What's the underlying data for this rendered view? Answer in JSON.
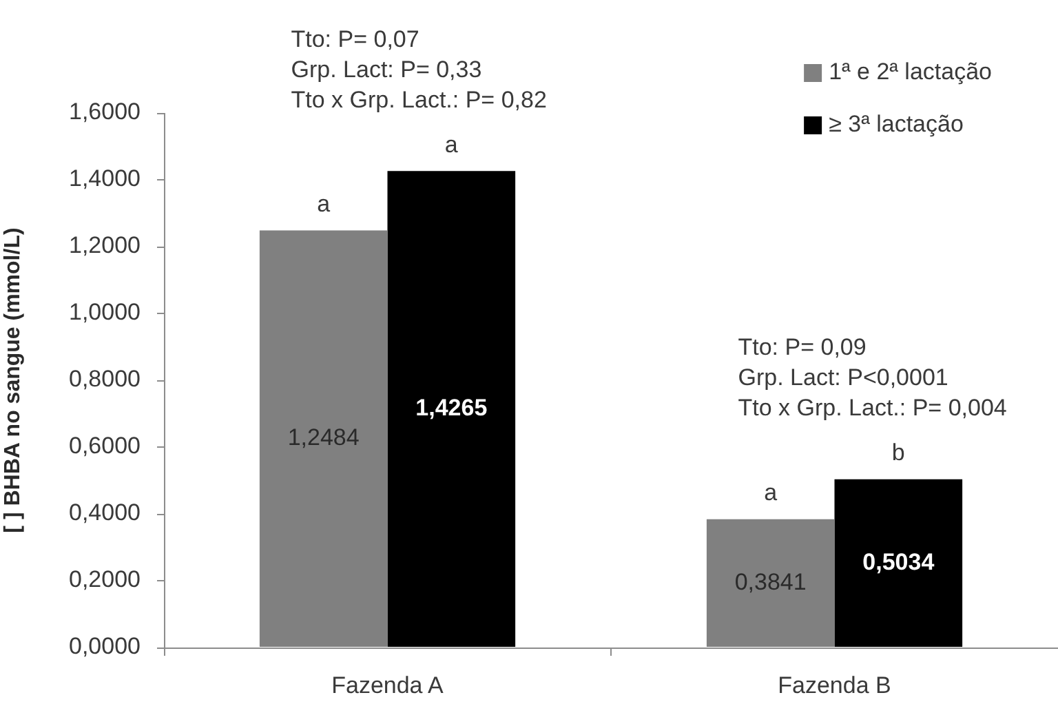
{
  "chart_data": {
    "type": "bar",
    "categories": [
      "Fazenda A",
      "Fazenda B"
    ],
    "series": [
      {
        "name": "1ª e 2ª lactação",
        "color": "#808080",
        "values": [
          1.2484,
          0.3841
        ],
        "value_labels": [
          "1,2484",
          "0,3841"
        ]
      },
      {
        "name": "≥ 3ª lactação",
        "color": "#000000",
        "values": [
          1.4265,
          0.5034
        ],
        "value_labels": [
          "1,4265",
          "0,5034"
        ]
      }
    ],
    "ylabel": "[ ] BHBA no sangue (mmol/L)",
    "ylim": [
      0,
      1.6
    ],
    "yticks": [
      {
        "value": 0,
        "label": "0,0000"
      },
      {
        "value": 0.2,
        "label": "0,2000"
      },
      {
        "value": 0.4,
        "label": "0,4000"
      },
      {
        "value": 0.6,
        "label": "0,6000"
      },
      {
        "value": 0.8,
        "label": "0,8000"
      },
      {
        "value": 1.0,
        "label": "1,0000"
      },
      {
        "value": 1.2,
        "label": "1,2000"
      },
      {
        "value": 1.4,
        "label": "1,4000"
      },
      {
        "value": 1.6,
        "label": "1,6000"
      }
    ],
    "annotations": [
      {
        "text": "a",
        "x": "Fazenda A",
        "y": 1.2484
      },
      {
        "text": "a",
        "x": "Fazenda A",
        "y": 1.4265
      },
      {
        "text": "a",
        "x": "Fazenda B",
        "y": 0.3841
      },
      {
        "text": "b",
        "x": "Fazenda B",
        "y": 0.5034
      },
      "Tto: P= 0,07",
      "Grp. Lact: P= 0,33",
      "Tto x Grp. Lact.: P= 0,82",
      "Tto: P= 0,09",
      "Grp. Lact: P<0,0001",
      "Tto x Grp. Lact.: P= 0,004"
    ],
    "grid": false,
    "legend": "top right"
  }
}
